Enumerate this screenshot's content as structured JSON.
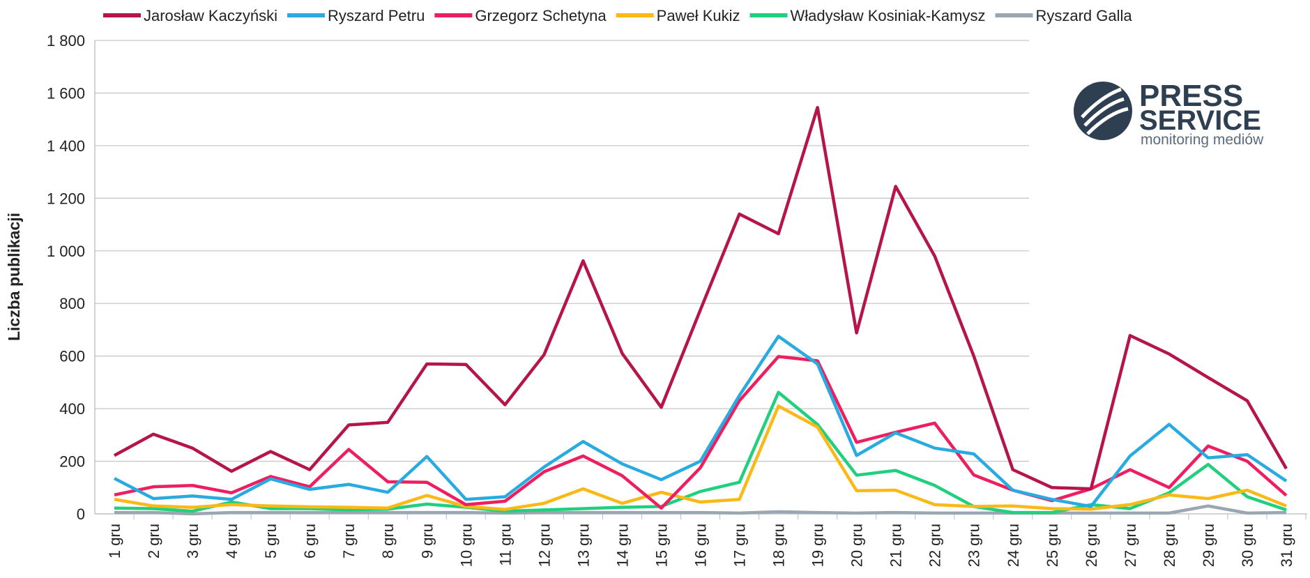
{
  "chart_data": {
    "type": "line",
    "y_label": "Liczba publikacji",
    "categories": [
      "1 gru",
      "2 gru",
      "3 gru",
      "4 gru",
      "5 gru",
      "6 gru",
      "7 gru",
      "8 gru",
      "9 gru",
      "10 gru",
      "11 gru",
      "12 gru",
      "13 gru",
      "14 gru",
      "15 gru",
      "16 gru",
      "17 gru",
      "18 gru",
      "19 gru",
      "20 gru",
      "21 gru",
      "22 gru",
      "23 gru",
      "24 gru",
      "25 gru",
      "26 gru",
      "27 gru",
      "28 gru",
      "29 gru",
      "30 gru",
      "31 gru"
    ],
    "series": [
      {
        "name": "Jarosław Kaczyński",
        "color": "#b5154b",
        "values": [
          222,
          303,
          250,
          162,
          237,
          168,
          338,
          348,
          570,
          568,
          415,
          605,
          962,
          610,
          405,
          775,
          1140,
          1065,
          1545,
          688,
          1245,
          980,
          600,
          168,
          100,
          95,
          678,
          608,
          518,
          430,
          172
        ]
      },
      {
        "name": "Ryszard Petru",
        "color": "#29abe2",
        "values": [
          135,
          58,
          68,
          55,
          133,
          93,
          112,
          82,
          218,
          55,
          65,
          178,
          275,
          190,
          130,
          200,
          450,
          675,
          570,
          222,
          308,
          250,
          228,
          90,
          55,
          28,
          220,
          340,
          213,
          225,
          125
        ]
      },
      {
        "name": "Grzegorz Schetyna",
        "color": "#ee1f60",
        "values": [
          72,
          103,
          108,
          80,
          142,
          103,
          245,
          122,
          120,
          35,
          48,
          160,
          220,
          145,
          22,
          175,
          430,
          598,
          582,
          272,
          310,
          345,
          148,
          90,
          50,
          95,
          168,
          100,
          258,
          200,
          70
        ]
      },
      {
        "name": "Paweł Kukiz",
        "color": "#fbb917",
        "values": [
          55,
          30,
          25,
          35,
          30,
          27,
          25,
          22,
          70,
          28,
          17,
          40,
          95,
          40,
          82,
          45,
          55,
          410,
          330,
          88,
          90,
          35,
          28,
          30,
          20,
          18,
          35,
          72,
          58,
          90,
          30
        ]
      },
      {
        "name": "Władysław Kosiniak-Kamysz",
        "color": "#21d07e",
        "values": [
          22,
          20,
          10,
          45,
          20,
          20,
          15,
          18,
          37,
          25,
          10,
          15,
          20,
          25,
          28,
          85,
          120,
          462,
          340,
          147,
          165,
          108,
          28,
          5,
          5,
          35,
          20,
          80,
          188,
          65,
          15
        ]
      },
      {
        "name": "Ryszard Galla",
        "color": "#9aa6b2",
        "values": [
          5,
          5,
          0,
          5,
          5,
          5,
          5,
          5,
          5,
          5,
          3,
          5,
          5,
          5,
          5,
          5,
          3,
          8,
          5,
          3,
          5,
          3,
          3,
          3,
          3,
          3,
          3,
          3,
          30,
          3,
          5
        ]
      }
    ],
    "ylim": [
      0,
      1800
    ],
    "yticks": [
      0,
      200,
      400,
      600,
      800,
      {
        "value": 1000,
        "label": "1 000"
      },
      {
        "value": 1200,
        "label": "1 200"
      },
      {
        "value": 1400,
        "label": "1 400"
      },
      {
        "value": 1600,
        "label": "1 600"
      },
      {
        "value": 1800,
        "label": "1 800"
      }
    ],
    "grid": true,
    "legend": "top"
  },
  "logo": {
    "line1": "PRESS",
    "line2": "SERVICE",
    "line3": "monitoring mediów"
  }
}
